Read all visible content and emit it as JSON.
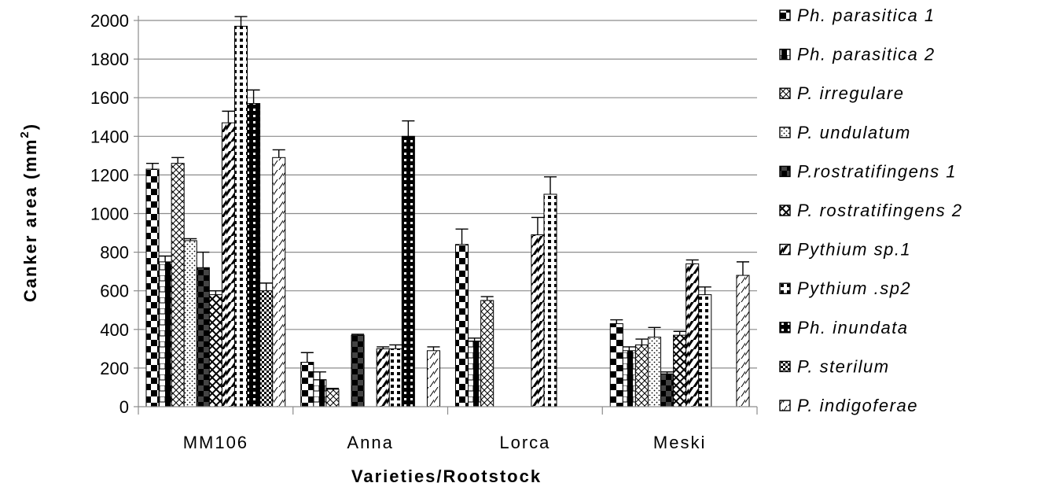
{
  "chart_data": {
    "type": "bar",
    "title": "",
    "xlabel": "Varieties/Rootstock",
    "ylabel": "Canker area (mm",
    "ylabel_superscript": "2",
    "ylabel_close": ")",
    "ylim": [
      0,
      2000
    ],
    "yticks": [
      "0",
      "200",
      "400",
      "600",
      "800",
      "1000",
      "1200",
      "1400",
      "1600",
      "1800",
      "2000"
    ],
    "grid": true,
    "legend_position": "right",
    "categories": [
      "MM106",
      "Anna",
      "Lorca",
      "Meski"
    ],
    "series": [
      {
        "name": "Ph. parasitica 1",
        "values": [
          1230,
          230,
          840,
          430
        ],
        "errors": [
          30,
          50,
          80,
          20
        ]
      },
      {
        "name": "Ph. parasitica 2",
        "values": [
          750,
          140,
          340,
          290
        ],
        "errors": [
          30,
          40,
          15,
          20
        ]
      },
      {
        "name": "P. irregulare",
        "values": [
          1260,
          90,
          550,
          320
        ],
        "errors": [
          30,
          5,
          20,
          30
        ]
      },
      {
        "name": "P. undulatum",
        "values": [
          860,
          0,
          0,
          360
        ],
        "errors": [
          10,
          0,
          0,
          50
        ]
      },
      {
        "name": "P.rostratifingens 1",
        "values": [
          720,
          370,
          0,
          170
        ],
        "errors": [
          80,
          5,
          0,
          10
        ]
      },
      {
        "name": "P. rostratifingens 2",
        "values": [
          580,
          0,
          0,
          370
        ],
        "errors": [
          20,
          0,
          0,
          20
        ]
      },
      {
        "name": "Pythium sp.1",
        "values": [
          1470,
          300,
          890,
          740
        ],
        "errors": [
          60,
          10,
          90,
          20
        ]
      },
      {
        "name": "Pythium .sp2",
        "values": [
          1970,
          300,
          1100,
          580
        ],
        "errors": [
          50,
          20,
          90,
          40
        ]
      },
      {
        "name": "Ph. inundata",
        "values": [
          1570,
          1400,
          0,
          0
        ],
        "errors": [
          70,
          80,
          0,
          0
        ]
      },
      {
        "name": "P. sterilum",
        "values": [
          600,
          0,
          0,
          0
        ],
        "errors": [
          40,
          0,
          0,
          0
        ]
      },
      {
        "name": "P. indigoferae",
        "values": [
          1290,
          290,
          0,
          680
        ],
        "errors": [
          40,
          20,
          0,
          70
        ]
      }
    ]
  }
}
